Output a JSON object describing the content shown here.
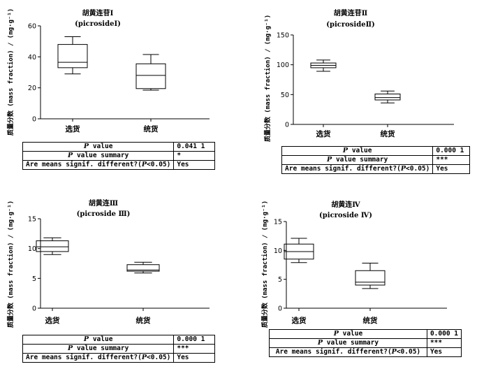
{
  "ylabel": "质量分数 (mass fraction) / (mg·g⁻¹)",
  "stats_labels": {
    "p_value": "value",
    "p_value_summary": "value summary",
    "means_diff_prefix": "Are means signif. different?(",
    "means_diff_suffix": "<0.05)",
    "p_letter": "P"
  },
  "chart_data": [
    {
      "type": "box",
      "title_cn": "胡黄连苷Ⅰ",
      "title_en": "(picrosideⅠ)",
      "categories": [
        "选货",
        "统货"
      ],
      "ylim": [
        0,
        60
      ],
      "yticks": [
        0,
        20,
        40,
        60
      ],
      "boxes": [
        {
          "min": 29,
          "q1": 33,
          "median": 36.5,
          "q3": 48,
          "max": 53
        },
        {
          "min": 18.5,
          "q1": 19.5,
          "median": 28,
          "q3": 35.5,
          "max": 41.5
        }
      ],
      "stats": {
        "p_value": "0.041 1",
        "summary": "*",
        "significant": "Yes"
      }
    },
    {
      "type": "box",
      "title_cn": "胡黄连苷Ⅱ",
      "title_en": "(picrosideⅡ)",
      "categories": [
        "选货",
        "统货"
      ],
      "ylim": [
        0,
        150
      ],
      "yticks": [
        0,
        50,
        100,
        150
      ],
      "boxes": [
        {
          "min": 89,
          "q1": 95,
          "median": 99,
          "q3": 103,
          "max": 108
        },
        {
          "min": 36,
          "q1": 41,
          "median": 45,
          "q3": 51,
          "max": 56
        }
      ],
      "stats": {
        "p_value": "0.000 1",
        "summary": "***",
        "significant": "Yes"
      }
    },
    {
      "type": "box",
      "title_cn": "胡黄连Ⅲ",
      "title_en": "(picroside Ⅲ)",
      "categories": [
        "选货",
        "统货"
      ],
      "ylim": [
        0,
        15
      ],
      "yticks": [
        0,
        5,
        10,
        15
      ],
      "boxes": [
        {
          "min": 9.0,
          "q1": 9.5,
          "median": 10.3,
          "q3": 11.3,
          "max": 11.8
        },
        {
          "min": 5.9,
          "q1": 6.2,
          "median": 6.4,
          "q3": 7.3,
          "max": 7.7
        }
      ],
      "stats": {
        "p_value": "0.000 1",
        "summary": "***",
        "significant": "Yes"
      }
    },
    {
      "type": "box",
      "title_cn": "胡黄连Ⅳ",
      "title_en": "(picroside Ⅳ)",
      "categories": [
        "选货",
        "统货"
      ],
      "ylim": [
        0,
        15
      ],
      "yticks": [
        0,
        5,
        10,
        15
      ],
      "boxes": [
        {
          "min": 7.9,
          "q1": 8.5,
          "median": 9.8,
          "q3": 11.1,
          "max": 12.1
        },
        {
          "min": 3.4,
          "q1": 4.0,
          "median": 4.5,
          "q3": 6.5,
          "max": 7.8
        }
      ],
      "stats": {
        "p_value": "0.000 1",
        "summary": "***",
        "significant": "Yes"
      }
    }
  ]
}
